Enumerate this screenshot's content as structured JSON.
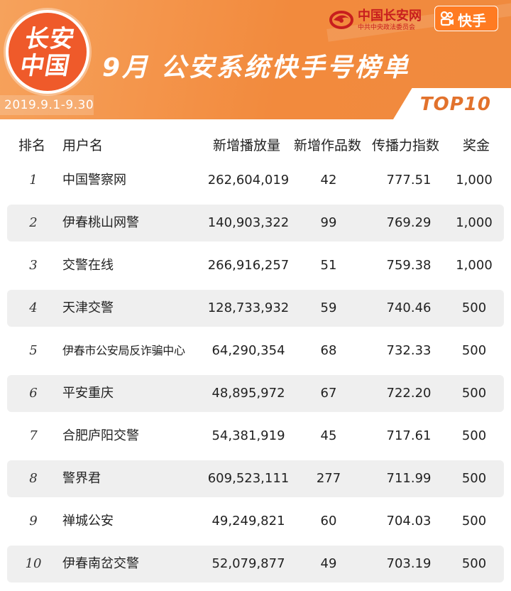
{
  "banner": {
    "logo_line1": "长安",
    "logo_line2": "中国",
    "title": "9月 公安系统快手号榜单",
    "date_range": "2019.9.1-9.30",
    "top_label": "TOP10",
    "brand_name": "中国长安网",
    "brand_sub": "中共中央政法委员会",
    "kuaishou_label": "快手",
    "colors": {
      "orange": "#f28a3d",
      "red": "#c81e1e",
      "kuaishou": "#ff7b22"
    }
  },
  "table": {
    "headers": {
      "rank": "排名",
      "user": "用户名",
      "plays": "新增播放量",
      "works": "新增作品数",
      "index": "传播力指数",
      "prize": "奖金"
    },
    "rows": [
      {
        "rank": "1",
        "user": "中国警察网",
        "plays": "262,604,019",
        "works": "42",
        "index": "777.51",
        "prize": "1,000"
      },
      {
        "rank": "2",
        "user": "伊春桃山网警",
        "plays": "140,903,322",
        "works": "99",
        "index": "769.29",
        "prize": "1,000"
      },
      {
        "rank": "3",
        "user": "交警在线",
        "plays": "266,916,257",
        "works": "51",
        "index": "759.38",
        "prize": "1,000"
      },
      {
        "rank": "4",
        "user": "天津交警",
        "plays": "128,733,932",
        "works": "59",
        "index": "740.46",
        "prize": "500"
      },
      {
        "rank": "5",
        "user": "伊春市公安局反诈骗中心",
        "plays": "64,290,354",
        "works": "68",
        "index": "732.33",
        "prize": "500"
      },
      {
        "rank": "6",
        "user": "平安重庆",
        "plays": "48,895,972",
        "works": "67",
        "index": "722.20",
        "prize": "500"
      },
      {
        "rank": "7",
        "user": "合肥庐阳交警",
        "plays": "54,381,919",
        "works": "45",
        "index": "717.61",
        "prize": "500"
      },
      {
        "rank": "8",
        "user": "警界君",
        "plays": "609,523,111",
        "works": "277",
        "index": "711.99",
        "prize": "500"
      },
      {
        "rank": "9",
        "user": "禅城公安",
        "plays": "49,249,821",
        "works": "60",
        "index": "704.03",
        "prize": "500"
      },
      {
        "rank": "10",
        "user": "伊春南岔交警",
        "plays": "52,079,877",
        "works": "49",
        "index": "703.19",
        "prize": "500"
      }
    ]
  }
}
